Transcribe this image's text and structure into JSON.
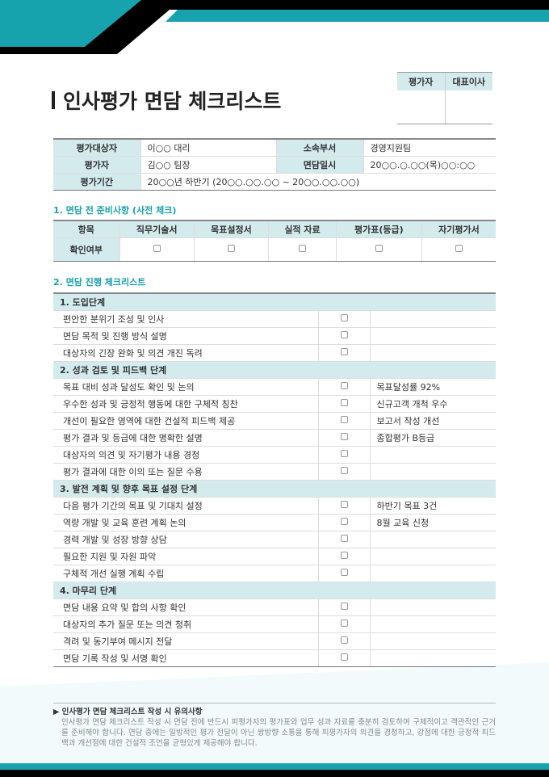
{
  "colors": {
    "accent": "#17a3ad",
    "header_bg": "#d4ebee",
    "dark": "#000000"
  },
  "title": "인사평가 면담 체크리스트",
  "approval": {
    "headers": [
      "평가자",
      "대표이사"
    ]
  },
  "info": {
    "rows": [
      {
        "l1": "평가대상자",
        "v1": "이○○ 대리",
        "l2": "소속부서",
        "v2": "경영지원팀"
      },
      {
        "l1": "평가자",
        "v1": "김○○ 팀장",
        "l2": "면담일시",
        "v2": "20○○.○.○○(목)○○:○○"
      }
    ],
    "period_label": "평가기간",
    "period_value": "20○○년 하반기 (20○○.○○.○○ ~ 20○○.○○.○○)"
  },
  "section1": {
    "title": "1. 면담 전 준비사항 (사전 체크)",
    "headers": [
      "항목",
      "직무기술서",
      "목표설정서",
      "실적 자료",
      "평가표(등급)",
      "자기평가서"
    ],
    "row_label": "확인여부",
    "checked": [
      false,
      false,
      false,
      false,
      false
    ]
  },
  "section2": {
    "title": "2. 면담 진행 체크리스트",
    "groups": [
      {
        "title": "1. 도입단계",
        "items": [
          {
            "t": "편안한 분위기 조성 및 인사",
            "n": ""
          },
          {
            "t": "면담 목적 및 진행 방식 설명",
            "n": ""
          },
          {
            "t": "대상자의 긴장 완화 및 의견 개진 독려",
            "n": ""
          }
        ]
      },
      {
        "title": "2. 성과 검토 및 피드백 단계",
        "items": [
          {
            "t": "목표 대비 성과 달성도 확인 및 논의",
            "n": "목표달성률 92%"
          },
          {
            "t": "우수한 성과 및 긍정적 행동에 대한 구체적 칭찬",
            "n": "신규고객 개척 우수"
          },
          {
            "t": "개선이 필요한 영역에 대한 건설적 피드백 제공",
            "n": "보고서 작성 개선"
          },
          {
            "t": "평가 결과 및 등급에 대한 명확한 설명",
            "n": "종합평가 B등급"
          },
          {
            "t": "대상자의 의견 및 자기평가 내용 경청",
            "n": ""
          },
          {
            "t": "평가 결과에 대한 이의 또는 질문 수용",
            "n": ""
          }
        ]
      },
      {
        "title": "3. 발전 계획 및 향후 목표 설정 단계",
        "items": [
          {
            "t": "다음 평가 기간의 목표 및 기대치 설정",
            "n": "하반기 목표 3건"
          },
          {
            "t": "역량 개발 및 교육 훈련 계획 논의",
            "n": "8월 교육 신청"
          },
          {
            "t": "경력 개발 및 성장 방향 상담",
            "n": ""
          },
          {
            "t": "필요한 지원 및 자원 파악",
            "n": ""
          },
          {
            "t": "구체적 개선 실행 계획 수립",
            "n": ""
          }
        ]
      },
      {
        "title": "4. 마무리 단계",
        "items": [
          {
            "t": "면담 내용 요약 및 합의 사항 확인",
            "n": ""
          },
          {
            "t": "대상자의 추가 질문 또는 의견 청취",
            "n": ""
          },
          {
            "t": "격려 및 동기부여 메시지 전달",
            "n": ""
          },
          {
            "t": "면담 기록 작성 및 서명 확인",
            "n": ""
          }
        ]
      }
    ]
  },
  "footer": {
    "heading": "인사평가 면담 체크리스트 작성 시 유의사항",
    "text": "인사평가 면담 체크리스트 작성 시 면담 전에 반드시 피평가자의 평가표와 업무 성과 자료를 충분히 검토하여 구체적이고 객관적인 근거를 준비해야 합니다. 면담 중에는 일방적인 평가 전달이 아닌 쌍방향 소통을 통해 피평가자의 의견을 경청하고, 강점에 대한 긍정적 피드백과 개선점에 대한 건설적 조언을 균형있게 제공해야 합니다."
  }
}
